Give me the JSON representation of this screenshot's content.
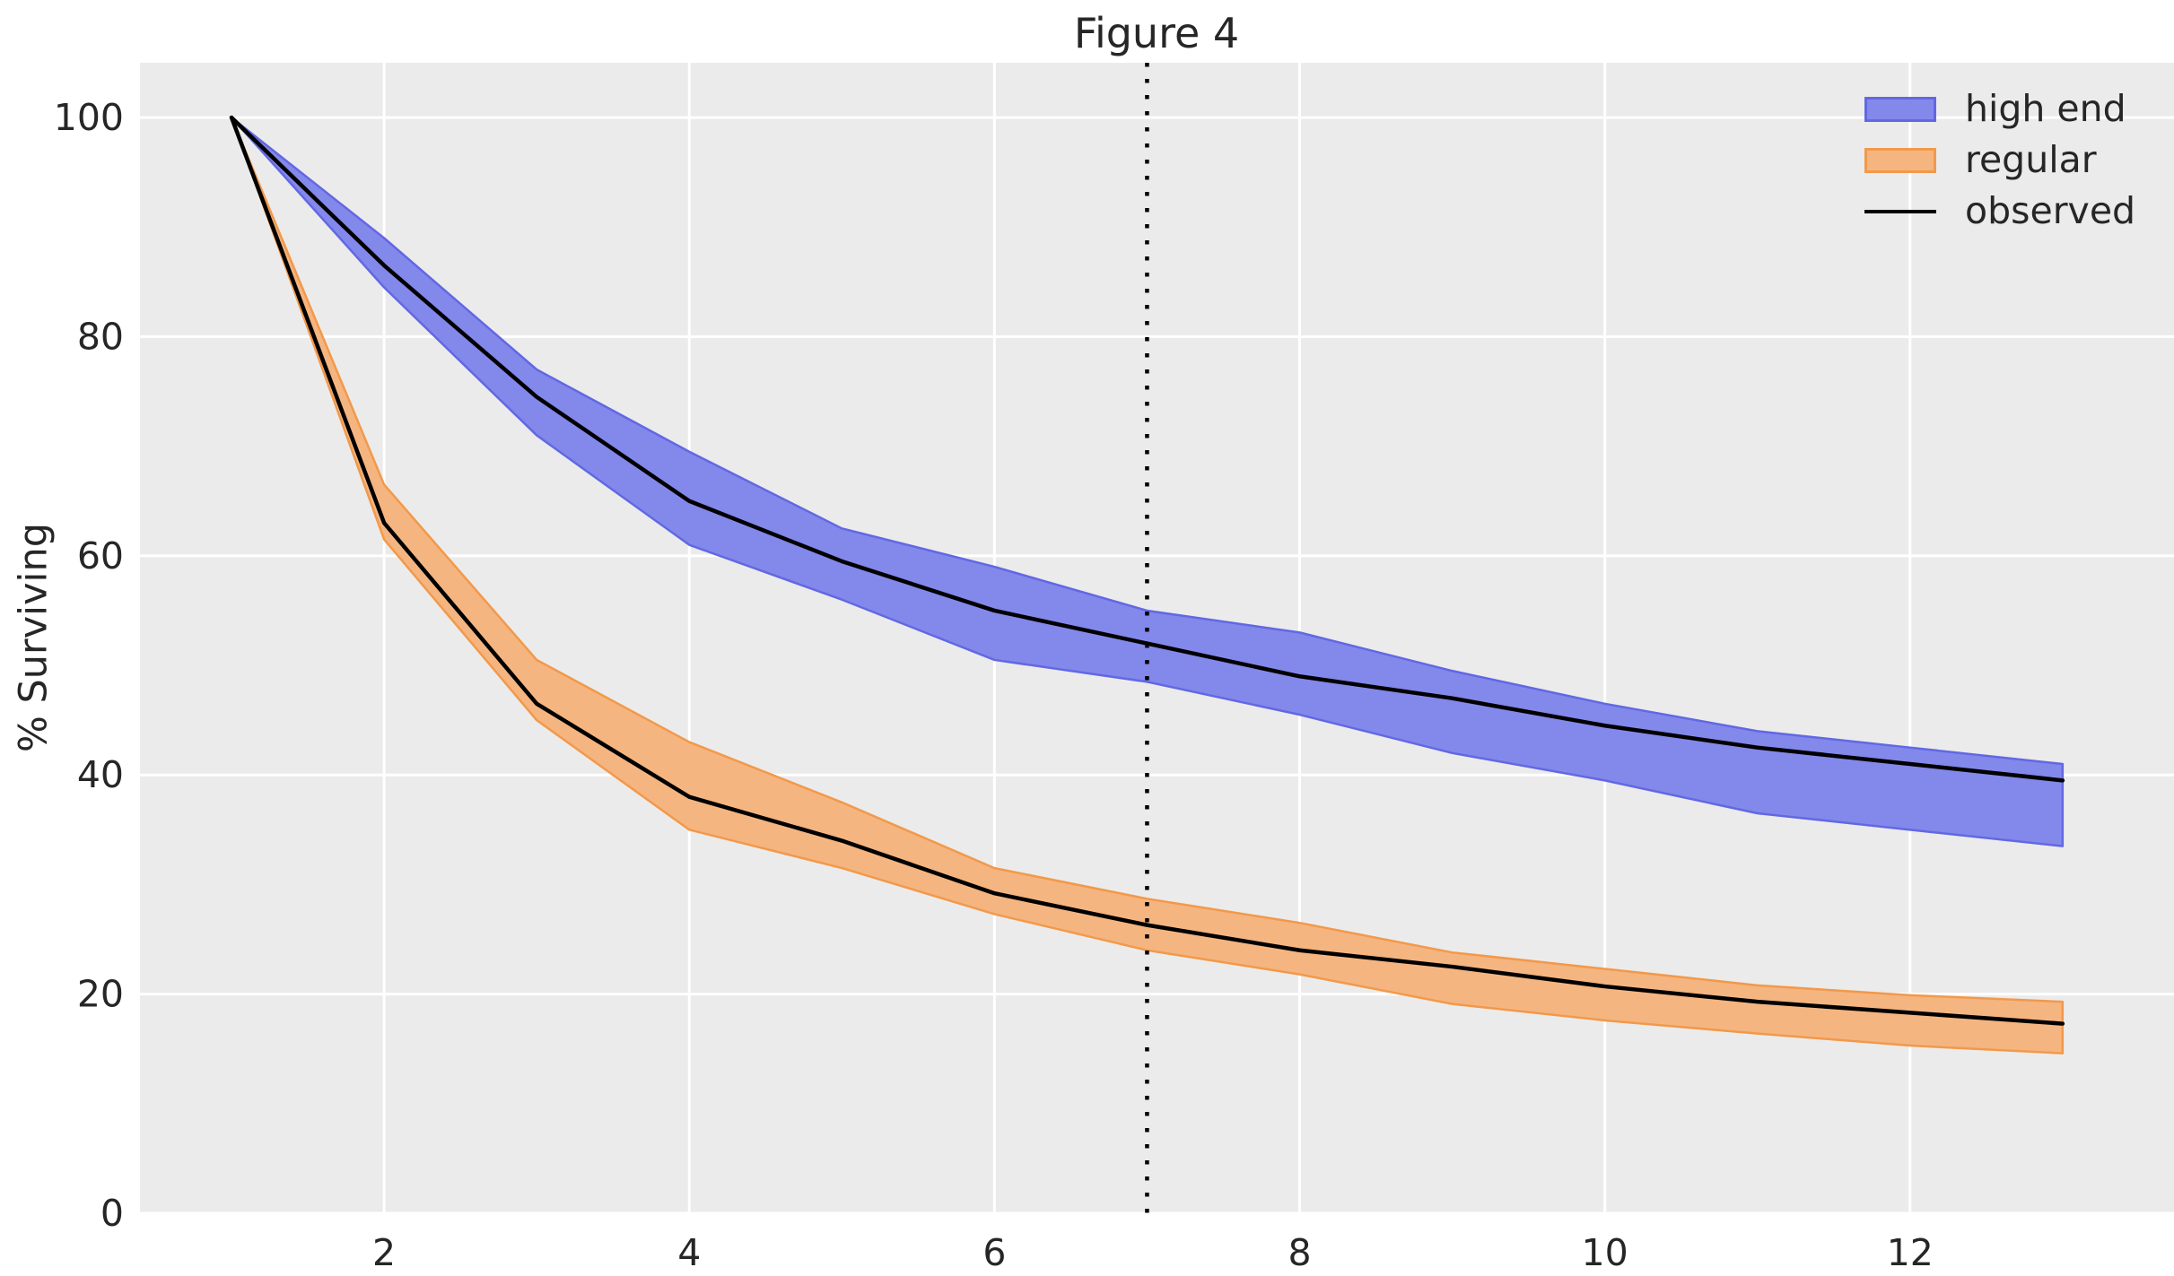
{
  "chart_data": {
    "type": "area",
    "title": "Figure 4",
    "xlabel": "",
    "ylabel": "% Surviving",
    "x": [
      1,
      2,
      3,
      4,
      5,
      6,
      7,
      8,
      9,
      10,
      11,
      12,
      13
    ],
    "series": [
      {
        "name": "high end",
        "kind": "band",
        "fill": "#8388EB",
        "edge": "#6268E3",
        "upper": [
          100,
          89,
          77,
          69.5,
          62.5,
          59,
          55,
          53,
          49.5,
          46.5,
          44,
          42.5,
          41
        ],
        "lower": [
          100,
          84.5,
          71,
          61,
          56,
          50.5,
          48.5,
          45.5,
          42,
          39.5,
          36.5,
          35,
          33.5
        ]
      },
      {
        "name": "regular",
        "kind": "band",
        "fill": "#F5B581",
        "edge": "#F2994A",
        "upper": [
          100,
          66.5,
          50.5,
          43,
          37.5,
          31.5,
          28.7,
          26.5,
          23.8,
          22.3,
          20.8,
          19.9,
          19.3
        ],
        "lower": [
          100,
          61.5,
          45,
          35,
          31.5,
          27.3,
          24,
          21.8,
          19.1,
          17.6,
          16.4,
          15.3,
          14.6
        ]
      },
      {
        "name": "observed high end",
        "kind": "line",
        "color": "#000000",
        "values": [
          100,
          86.5,
          74.5,
          65,
          59.5,
          55,
          52,
          49,
          47,
          44.5,
          42.5,
          41,
          39.5
        ]
      },
      {
        "name": "observed regular",
        "kind": "line",
        "color": "#000000",
        "values": [
          100,
          63,
          46.5,
          38,
          34,
          29.2,
          26.3,
          24,
          22.5,
          20.7,
          19.3,
          18.3,
          17.3
        ]
      }
    ],
    "vline": {
      "x": 7,
      "style": "dotted",
      "color": "#000000"
    },
    "xticks": [
      2,
      4,
      6,
      8,
      10,
      12
    ],
    "yticks": [
      0,
      20,
      40,
      60,
      80,
      100
    ],
    "xlim": [
      0.4,
      13.73
    ],
    "ylim": [
      0,
      105
    ],
    "grid": true,
    "plot_bg": "#EBEBEB",
    "grid_color": "#FFFFFF",
    "text_color": "#262626",
    "legend": {
      "position": "upper right",
      "entries": [
        {
          "label": "high end",
          "swatch": "patch",
          "fill": "#8388EB",
          "edge": "#6268E3"
        },
        {
          "label": "regular",
          "swatch": "patch",
          "fill": "#F5B581",
          "edge": "#F2994A"
        },
        {
          "label": "observed",
          "swatch": "line",
          "color": "#000000"
        }
      ]
    }
  }
}
